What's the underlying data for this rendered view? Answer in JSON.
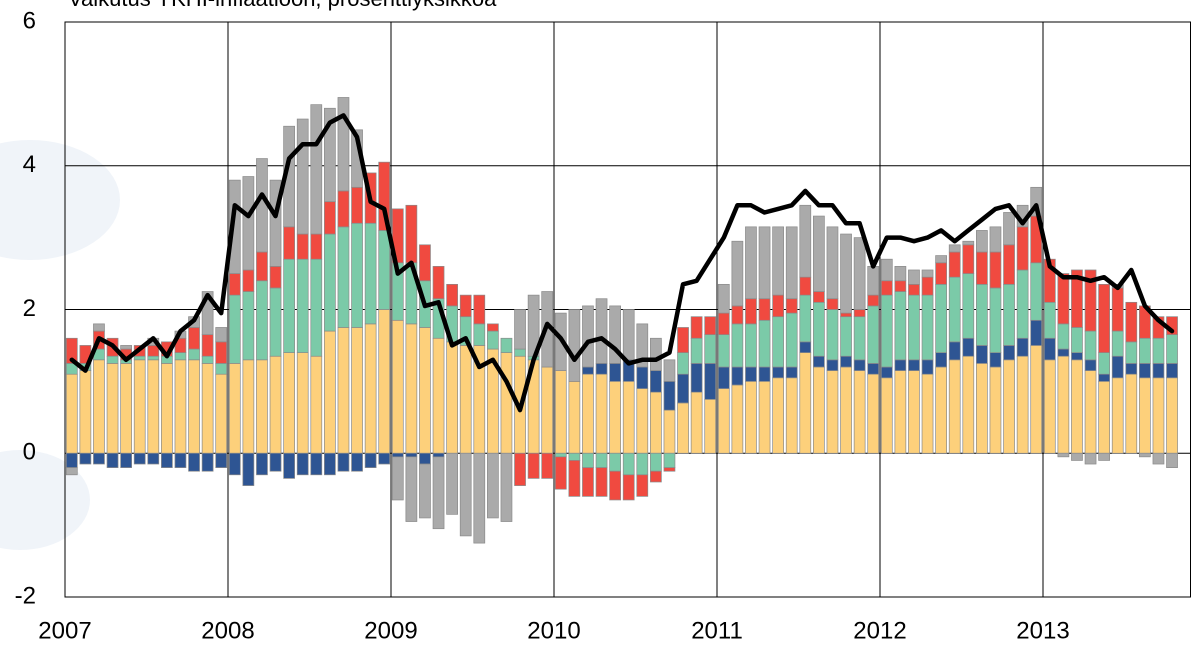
{
  "chart_data": {
    "type": "stacked-bar-line",
    "title": "Vaikutus YKHI-inflaatioon, prosenttiyksikköä",
    "categories": [
      null,
      null,
      null,
      null,
      null,
      null,
      null,
      null,
      null,
      null,
      null,
      null,
      null,
      null,
      null,
      null,
      null,
      null,
      null,
      null,
      null,
      null,
      null,
      null,
      null,
      null,
      null,
      null,
      null,
      null,
      null,
      null,
      null,
      null,
      null,
      null,
      null,
      null,
      null,
      null,
      null,
      null,
      null,
      null,
      null,
      null,
      null,
      null,
      null,
      null,
      null,
      null,
      null,
      null,
      null,
      null,
      null,
      null,
      null,
      null,
      null,
      null,
      null,
      null,
      null,
      null,
      null,
      null,
      null,
      null,
      null,
      null,
      null,
      null,
      null,
      null,
      null,
      null,
      null,
      null,
      null,
      null
    ],
    "xtick_labels": [
      "2007",
      "2008",
      "2009",
      "2010",
      "2011",
      "2012",
      "2013"
    ],
    "ylim": [
      -2,
      6
    ],
    "yticks": [
      -2,
      0,
      2,
      4,
      6
    ],
    "grid": true,
    "series": [
      {
        "color": "#fdd07b",
        "values": [
          1.1,
          1.15,
          1.3,
          1.25,
          1.25,
          1.3,
          1.3,
          1.25,
          1.3,
          1.3,
          1.25,
          1.1,
          1.25,
          1.3,
          1.3,
          1.35,
          1.4,
          1.4,
          1.35,
          1.7,
          1.75,
          1.75,
          1.8,
          2.0,
          1.85,
          1.8,
          1.75,
          1.6,
          1.55,
          1.5,
          1.5,
          1.45,
          1.4,
          1.35,
          1.3,
          1.2,
          1.15,
          1.0,
          1.1,
          1.1,
          1.0,
          1.0,
          0.9,
          0.85,
          0.6,
          0.7,
          0.85,
          0.75,
          0.9,
          0.95,
          1.0,
          1.0,
          1.05,
          1.05,
          1.4,
          1.2,
          1.15,
          1.2,
          1.15,
          1.1,
          1.05,
          1.15,
          1.15,
          1.1,
          1.2,
          1.3,
          1.35,
          1.25,
          1.2,
          1.3,
          1.35,
          1.5,
          1.3,
          1.35,
          1.3,
          1.15,
          1.0,
          1.05,
          1.1,
          1.05,
          1.05,
          1.05
        ]
      },
      {
        "color": "#2e5593",
        "values": [
          -0.2,
          -0.15,
          -0.15,
          -0.2,
          -0.2,
          -0.15,
          -0.15,
          -0.2,
          -0.2,
          -0.25,
          -0.25,
          -0.2,
          -0.3,
          -0.45,
          -0.3,
          -0.25,
          -0.35,
          -0.3,
          -0.3,
          -0.3,
          -0.25,
          -0.25,
          -0.2,
          -0.15,
          -0.05,
          -0.05,
          -0.15,
          -0.05,
          0,
          0,
          0,
          0,
          0,
          0,
          0,
          0,
          0,
          0,
          0.1,
          0.15,
          0.25,
          0.3,
          0.3,
          0.3,
          0.4,
          0.4,
          0.4,
          0.5,
          0.3,
          0.25,
          0.2,
          0.2,
          0.15,
          0.15,
          0.15,
          0.15,
          0.15,
          0.15,
          0.15,
          0.15,
          0.15,
          0.15,
          0.15,
          0.2,
          0.2,
          0.25,
          0.25,
          0.25,
          0.2,
          0.2,
          0.25,
          0.35,
          0.3,
          0.1,
          0.1,
          0.15,
          0.1,
          0.3,
          0.15,
          0.2,
          0.2,
          0.2
        ]
      },
      {
        "color": "#7bcaa8",
        "values": [
          0.15,
          0.1,
          0.15,
          0.1,
          0.05,
          0.05,
          0.05,
          0.1,
          0.1,
          0.15,
          0.1,
          0.15,
          0.95,
          0.95,
          1.1,
          0.95,
          1.3,
          1.3,
          1.35,
          1.35,
          1.4,
          1.45,
          1.4,
          1.1,
          0.8,
          0.85,
          0.65,
          0.55,
          0.5,
          0.4,
          0.3,
          0.25,
          0.2,
          0.1,
          0.05,
          0,
          -0.05,
          -0.1,
          -0.2,
          -0.2,
          -0.25,
          -0.3,
          -0.3,
          -0.25,
          -0.2,
          0.3,
          0.35,
          0.4,
          0.45,
          0.6,
          0.6,
          0.65,
          0.7,
          0.75,
          0.65,
          0.75,
          0.7,
          0.55,
          0.6,
          0.8,
          1.0,
          0.95,
          0.9,
          0.9,
          0.95,
          0.9,
          0.9,
          0.85,
          0.9,
          0.85,
          0.95,
          0.8,
          0.5,
          0.35,
          0.35,
          0.4,
          0.3,
          0.35,
          0.3,
          0.35,
          0.35,
          0.4
        ]
      },
      {
        "color": "#f04a40",
        "values": [
          0.35,
          0.25,
          0.25,
          0.25,
          0.15,
          0.15,
          0.15,
          0.2,
          0.2,
          0.3,
          0.3,
          0.3,
          0.3,
          0.3,
          0.4,
          0.3,
          0.45,
          0.35,
          0.35,
          0.45,
          0.5,
          0.5,
          0.7,
          0.95,
          0.75,
          0.8,
          0.5,
          0.45,
          0.3,
          0.3,
          0.4,
          0.1,
          0,
          -0.45,
          -0.35,
          -0.35,
          -0.45,
          -0.5,
          -0.4,
          -0.4,
          -0.4,
          -0.35,
          -0.3,
          -0.15,
          -0.05,
          0.35,
          0.3,
          0.25,
          0.3,
          0.25,
          0.35,
          0.3,
          0.3,
          0.2,
          0.25,
          0.15,
          0.15,
          0.05,
          0.1,
          0.15,
          0.2,
          0.15,
          0.15,
          0.25,
          0.3,
          0.35,
          0.4,
          0.45,
          0.5,
          0.55,
          0.6,
          0.65,
          0.6,
          0.7,
          0.8,
          0.85,
          0.95,
          0.6,
          0.55,
          0.45,
          0.3,
          0.25
        ]
      },
      {
        "color": "#aaaaaa",
        "values": [
          -0.1,
          0,
          0.1,
          0,
          0.05,
          0,
          0.1,
          0,
          0.1,
          0.15,
          0.6,
          0.2,
          1.3,
          1.3,
          1.3,
          1.2,
          1.4,
          1.6,
          1.8,
          1.3,
          1.3,
          0.8,
          0,
          0,
          -0.6,
          -0.9,
          -0.75,
          -1.0,
          -0.85,
          -1.15,
          -1.25,
          -0.9,
          -0.95,
          0.55,
          0.85,
          1.05,
          0.8,
          1.0,
          0.85,
          0.9,
          0.8,
          0.7,
          0.6,
          0.45,
          0.3,
          0,
          0,
          0,
          0.4,
          0.9,
          1.0,
          1.0,
          0.95,
          1.0,
          1.0,
          1.05,
          1.0,
          1.1,
          1.0,
          0.4,
          0.3,
          0.2,
          0.2,
          0.1,
          0.1,
          0.1,
          0.05,
          0.3,
          0.35,
          0.45,
          0.3,
          0.4,
          0,
          -0.05,
          -0.1,
          -0.15,
          -0.1,
          0.05,
          0,
          -0.05,
          -0.15,
          -0.2
        ]
      }
    ],
    "line": {
      "color": "#000000",
      "values": [
        1.3,
        1.15,
        1.6,
        1.5,
        1.3,
        1.45,
        1.6,
        1.35,
        1.7,
        1.85,
        2.2,
        1.95,
        3.45,
        3.3,
        3.6,
        3.3,
        4.1,
        4.3,
        4.3,
        4.6,
        4.7,
        4.4,
        3.5,
        3.4,
        2.5,
        2.65,
        2.05,
        2.1,
        1.5,
        1.6,
        1.2,
        1.3,
        1.0,
        0.6,
        1.3,
        1.8,
        1.6,
        1.3,
        1.55,
        1.6,
        1.45,
        1.25,
        1.3,
        1.3,
        1.4,
        2.35,
        2.4,
        2.7,
        3.0,
        3.45,
        3.45,
        3.35,
        3.4,
        3.45,
        3.65,
        3.45,
        3.45,
        3.2,
        3.2,
        2.6,
        3.0,
        3.0,
        2.95,
        3.0,
        3.1,
        2.95,
        3.1,
        3.25,
        3.4,
        3.45,
        3.2,
        3.45,
        2.6,
        2.45,
        2.45,
        2.4,
        2.45,
        2.3,
        2.55,
        2.05,
        1.85,
        1.7
      ]
    }
  }
}
